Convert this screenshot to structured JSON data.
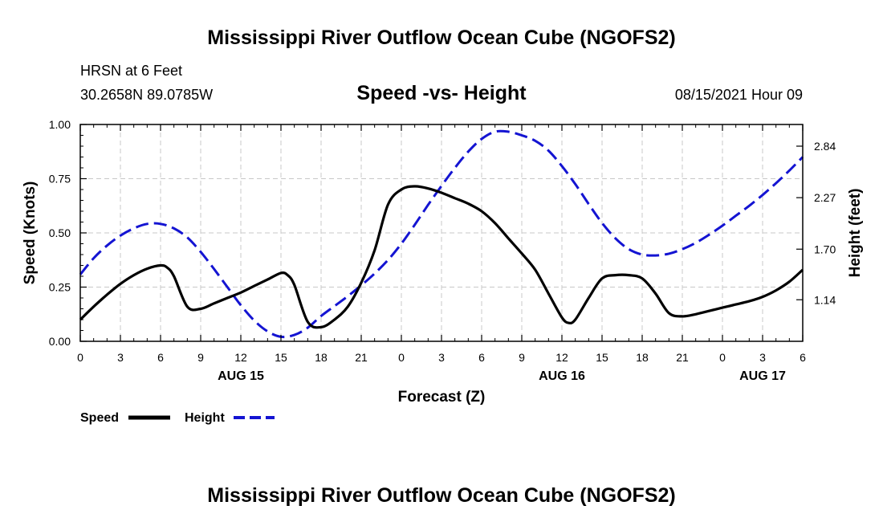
{
  "page": {
    "title_top": "Mississippi River Outflow Ocean Cube (NGOFS2)",
    "title_bottom": "Mississippi River Outflow Ocean Cube (NGOFS2)",
    "station": "HRSN at 6 Feet",
    "location": "30.2658N  89.0785W",
    "subtitle": "Speed -vs- Height",
    "datetime": "08/15/2021 Hour 09"
  },
  "chart_data": {
    "type": "line",
    "title": "Speed -vs- Height",
    "xlabel": "Forecast (Z)",
    "ylabel": "Speed (Knots)",
    "y2label": "Height (feet)",
    "xlim": [
      0,
      54
    ],
    "ylim": [
      0,
      1.0
    ],
    "y2lim": [
      0.68,
      3.08
    ],
    "x_ticks": [
      0,
      3,
      6,
      9,
      12,
      15,
      18,
      21,
      24,
      27,
      30,
      33,
      36,
      39,
      42,
      45,
      48,
      51,
      54
    ],
    "x_tick_labels": [
      "0",
      "3",
      "6",
      "9",
      "12",
      "15",
      "18",
      "21",
      "0",
      "3",
      "6",
      "9",
      "12",
      "15",
      "18",
      "21",
      "0",
      "3",
      "6"
    ],
    "y_ticks": [
      0,
      0.25,
      0.5,
      0.75,
      1.0
    ],
    "y_tick_labels": [
      "0.00",
      "0.25",
      "0.50",
      "0.75",
      "1.00"
    ],
    "y2_ticks": [
      1.14,
      1.7,
      2.27,
      2.84
    ],
    "y2_tick_labels": [
      "1.14",
      "1.70",
      "2.27",
      "2.84"
    ],
    "date_labels": [
      {
        "x": 12,
        "label": "AUG 15"
      },
      {
        "x": 36,
        "label": "AUG 16"
      },
      {
        "x": 51,
        "label": "AUG 17"
      }
    ],
    "grid": true,
    "legend_position": "bottom-left",
    "series": [
      {
        "name": "Speed",
        "axis": "left",
        "color": "#000000",
        "dash": "solid",
        "x": [
          0,
          1,
          2,
          3,
          4,
          5,
          6,
          6.5,
          7,
          8,
          9,
          10,
          11,
          12,
          13,
          14,
          15,
          15.5,
          16,
          17,
          18,
          19,
          20,
          21,
          22,
          23,
          24,
          25,
          26,
          27,
          28,
          29,
          30,
          31,
          32,
          33,
          34,
          35,
          36,
          36.5,
          37,
          38,
          39,
          40,
          41,
          42,
          43,
          44,
          45,
          46,
          47,
          48,
          49,
          50,
          51,
          52,
          53,
          54
        ],
        "values": [
          0.1,
          0.16,
          0.215,
          0.265,
          0.305,
          0.335,
          0.35,
          0.34,
          0.3,
          0.16,
          0.15,
          0.175,
          0.2,
          0.225,
          0.255,
          0.285,
          0.315,
          0.305,
          0.26,
          0.09,
          0.065,
          0.1,
          0.16,
          0.27,
          0.42,
          0.63,
          0.7,
          0.715,
          0.705,
          0.685,
          0.66,
          0.635,
          0.6,
          0.545,
          0.475,
          0.405,
          0.33,
          0.22,
          0.11,
          0.085,
          0.1,
          0.2,
          0.29,
          0.305,
          0.305,
          0.29,
          0.22,
          0.13,
          0.115,
          0.125,
          0.14,
          0.155,
          0.17,
          0.185,
          0.205,
          0.235,
          0.275,
          0.33
        ]
      },
      {
        "name": "Height",
        "axis": "right",
        "color": "#1414d2",
        "dash": "dashed",
        "x": [
          0,
          1,
          2,
          3,
          4,
          5,
          6,
          7,
          8,
          9,
          10,
          11,
          12,
          13,
          14,
          15,
          16,
          17,
          18,
          19,
          20,
          21,
          22,
          23,
          24,
          25,
          26,
          27,
          28,
          29,
          30,
          31,
          32,
          33,
          34,
          35,
          36,
          37,
          38,
          39,
          40,
          41,
          42,
          43,
          44,
          45,
          46,
          47,
          48,
          49,
          50,
          51,
          52,
          53,
          54
        ],
        "values": [
          1.42,
          1.6,
          1.74,
          1.85,
          1.93,
          1.98,
          1.98,
          1.93,
          1.83,
          1.67,
          1.48,
          1.28,
          1.08,
          0.91,
          0.79,
          0.73,
          0.75,
          0.83,
          0.96,
          1.07,
          1.18,
          1.3,
          1.43,
          1.58,
          1.76,
          1.97,
          2.19,
          2.4,
          2.6,
          2.78,
          2.92,
          3.0,
          3.0,
          2.96,
          2.9,
          2.79,
          2.62,
          2.42,
          2.2,
          1.99,
          1.82,
          1.7,
          1.64,
          1.63,
          1.65,
          1.7,
          1.77,
          1.86,
          1.96,
          2.07,
          2.18,
          2.3,
          2.43,
          2.57,
          2.72
        ]
      }
    ]
  }
}
